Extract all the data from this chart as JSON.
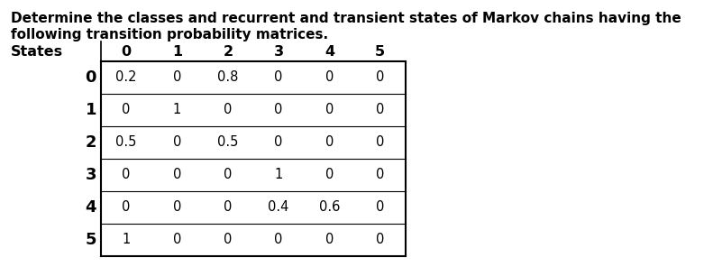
{
  "title_line1": "Determine the classes and recurrent and transient states of Markov chains having the",
  "title_line2": "following transition probability matrices.",
  "col_headers": [
    "0",
    "1",
    "2",
    "3",
    "4",
    "5"
  ],
  "row_headers": [
    "0",
    "1",
    "2",
    "3",
    "4",
    "5"
  ],
  "matrix": [
    [
      "0.2",
      "0",
      "0.8",
      "0",
      "0",
      "0"
    ],
    [
      "0",
      "1",
      "0",
      "0",
      "0",
      "0"
    ],
    [
      "0.5",
      "0",
      "0.5",
      "0",
      "0",
      "0"
    ],
    [
      "0",
      "0",
      "0",
      "1",
      "0",
      "0"
    ],
    [
      "0",
      "0",
      "0",
      "0.4",
      "0.6",
      "0"
    ],
    [
      "1",
      "0",
      "0",
      "0",
      "0",
      "0"
    ]
  ],
  "states_label": "States",
  "bg_color": "#ffffff",
  "text_color": "#000000",
  "title_fontsize": 11.0,
  "header_fontsize": 11.5,
  "row_header_fontsize": 13.0,
  "cell_fontsize": 10.5
}
